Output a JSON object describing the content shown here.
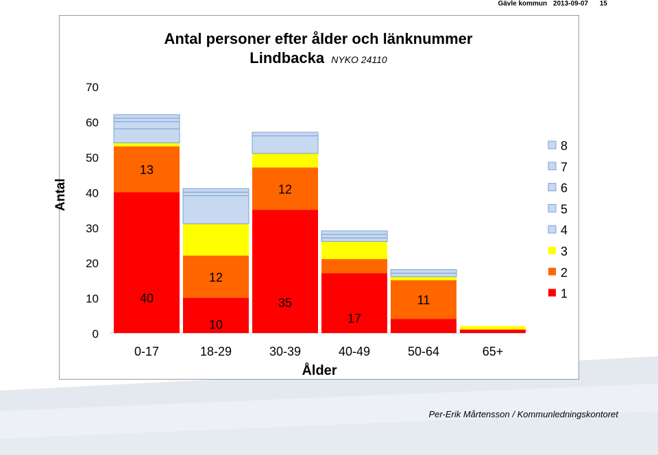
{
  "header": {
    "org": "Gävle kommun",
    "date": "2013-09-07",
    "page": "15"
  },
  "footer": {
    "author": "Per-Erik Mårtensson / Kommunledningskontoret"
  },
  "chart_data": {
    "type": "bar",
    "stacked": true,
    "title": "Antal personer efter ålder och länknummer",
    "subtitle_main": "Lindbacka",
    "subtitle_code": "NYKO 24110",
    "xlabel": "Ålder",
    "ylabel": "Antal",
    "ylim": [
      0,
      70
    ],
    "yticks": [
      0,
      10,
      20,
      30,
      40,
      50,
      60,
      70
    ],
    "categories": [
      "0-17",
      "18-29",
      "30-39",
      "40-49",
      "50-64",
      "65+"
    ],
    "legend_position": "right",
    "series": [
      {
        "name": "1",
        "color": "#ff0000",
        "values": [
          40,
          10,
          35,
          17,
          4,
          1
        ]
      },
      {
        "name": "2",
        "color": "#ff6600",
        "values": [
          13,
          12,
          12,
          4,
          11,
          0
        ]
      },
      {
        "name": "3",
        "color": "#ffff00",
        "values": [
          1,
          9,
          4,
          5,
          1,
          1
        ]
      },
      {
        "name": "4",
        "color": "#c6d9f1",
        "values": [
          4,
          8,
          5,
          1,
          1,
          0
        ]
      },
      {
        "name": "5",
        "color": "#c6d9f1",
        "values": [
          2,
          1,
          1,
          1,
          1,
          0
        ]
      },
      {
        "name": "6",
        "color": "#c6d9f1",
        "values": [
          1,
          1,
          0,
          1,
          0,
          0
        ]
      },
      {
        "name": "7",
        "color": "#c6d9f1",
        "values": [
          1,
          0,
          0,
          0,
          0,
          0
        ]
      },
      {
        "name": "8",
        "color": "#c6d9f1",
        "values": [
          0,
          0,
          0,
          0,
          0,
          0
        ]
      }
    ],
    "data_labels": [
      {
        "series": 0,
        "category": 0,
        "text": "40"
      },
      {
        "series": 1,
        "category": 0,
        "text": "13"
      },
      {
        "series": 0,
        "category": 1,
        "text": "10"
      },
      {
        "series": 1,
        "category": 1,
        "text": "12"
      },
      {
        "series": 0,
        "category": 2,
        "text": "35"
      },
      {
        "series": 1,
        "category": 2,
        "text": "12"
      },
      {
        "series": 0,
        "category": 3,
        "text": "17"
      },
      {
        "series": 1,
        "category": 4,
        "text": "11"
      }
    ]
  }
}
